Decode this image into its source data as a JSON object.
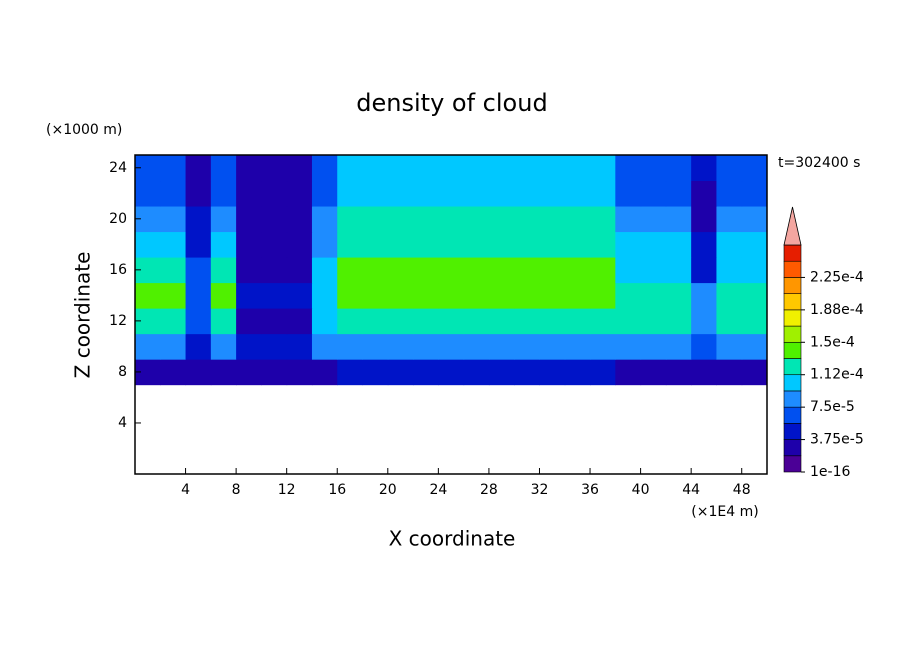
{
  "chart_data": {
    "type": "contour",
    "title": "density of cloud",
    "x_label": "X coordinate",
    "y_label": "Z coordinate",
    "x_unit": "(×1E4 m)",
    "y_unit": "(×1000 m)",
    "annotation": "t=302400 s",
    "xlim": [
      0,
      50
    ],
    "ylim": [
      0,
      25
    ],
    "xticks": [
      4,
      8,
      12,
      16,
      20,
      24,
      28,
      32,
      36,
      40,
      44,
      48
    ],
    "yticks": [
      4,
      8,
      12,
      16,
      20,
      24
    ],
    "x": [
      1,
      3,
      5,
      7,
      9,
      11,
      13,
      15,
      17,
      19,
      21,
      23,
      25,
      27,
      29,
      31,
      33,
      35,
      37,
      39,
      41,
      43,
      45,
      47,
      49
    ],
    "y": [
      8,
      10,
      12,
      14,
      16,
      18,
      20,
      22,
      24
    ],
    "z": [
      [
        3e-05,
        3e-05,
        2e-05,
        3e-05,
        2e-05,
        2e-05,
        2e-05,
        3e-05,
        4e-05,
        4e-05,
        4e-05,
        4e-05,
        4e-05,
        4e-05,
        4e-05,
        4e-05,
        4e-05,
        4e-05,
        4e-05,
        3e-05,
        3e-05,
        3e-05,
        3e-05,
        3e-05,
        3e-05
      ],
      [
        8e-05,
        8e-05,
        5e-05,
        8e-05,
        4e-05,
        4e-05,
        4e-05,
        8e-05,
        9e-05,
        9e-05,
        9e-05,
        9e-05,
        9e-05,
        9e-05,
        9e-05,
        9e-05,
        9e-05,
        9e-05,
        9e-05,
        8e-05,
        8e-05,
        8e-05,
        7e-05,
        8e-05,
        8e-05
      ],
      [
        0.00012,
        0.00012,
        6e-05,
        0.00012,
        3e-05,
        3e-05,
        3e-05,
        0.0001,
        0.000125,
        0.000125,
        0.000125,
        0.000125,
        0.000125,
        0.000125,
        0.000125,
        0.000125,
        0.000125,
        0.000125,
        0.000125,
        0.00012,
        0.00012,
        0.00012,
        9e-05,
        0.00012,
        0.00012
      ],
      [
        0.000135,
        0.000135,
        7e-05,
        0.000135,
        4e-05,
        4e-05,
        4e-05,
        0.00011,
        0.00014,
        0.00014,
        0.00014,
        0.00014,
        0.00014,
        0.00014,
        0.00014,
        0.00014,
        0.00014,
        0.00014,
        0.00014,
        0.00013,
        0.00013,
        0.00013,
        8e-05,
        0.00013,
        0.00013
      ],
      [
        0.00012,
        0.00012,
        6e-05,
        0.00012,
        3e-05,
        3e-05,
        3e-05,
        0.0001,
        0.00014,
        0.00014,
        0.00014,
        0.00014,
        0.00014,
        0.00014,
        0.00014,
        0.00014,
        0.00014,
        0.00014,
        0.00014,
        0.00011,
        0.00011,
        0.00011,
        5e-05,
        0.00011,
        0.00011
      ],
      [
        0.00011,
        0.00011,
        5e-05,
        0.00011,
        3e-05,
        3e-05,
        3e-05,
        9e-05,
        0.00013,
        0.00013,
        0.00013,
        0.00013,
        0.00013,
        0.00013,
        0.00013,
        0.00013,
        0.00013,
        0.00013,
        0.00013,
        0.0001,
        0.0001,
        0.0001,
        4e-05,
        0.0001,
        0.0001
      ],
      [
        8e-05,
        8e-05,
        4e-05,
        8e-05,
        3e-05,
        3e-05,
        3e-05,
        8e-05,
        0.00012,
        0.00012,
        0.00012,
        0.00012,
        0.00012,
        0.00012,
        0.00012,
        0.00012,
        0.00012,
        0.00012,
        0.00012,
        8e-05,
        8e-05,
        8e-05,
        3e-05,
        8e-05,
        8e-05
      ],
      [
        7e-05,
        7e-05,
        3e-05,
        7e-05,
        2e-05,
        2e-05,
        2e-05,
        6e-05,
        0.00011,
        0.00011,
        0.00011,
        0.00011,
        0.00011,
        0.00011,
        0.00011,
        0.00011,
        0.00011,
        0.00011,
        0.00011,
        6e-05,
        6e-05,
        6e-05,
        3e-05,
        6e-05,
        6e-05
      ],
      [
        6e-05,
        6e-05,
        3e-05,
        6e-05,
        3e-05,
        3e-05,
        3e-05,
        6e-05,
        0.0001,
        0.0001,
        0.0001,
        0.0001,
        0.0001,
        0.0001,
        0.0001,
        0.0001,
        0.0001,
        0.0001,
        0.0001,
        7e-05,
        7e-05,
        7e-05,
        4e-05,
        7e-05,
        7e-05
      ]
    ],
    "clim": [
      1e-16,
      0.0002625
    ],
    "colors": [
      "#4b0096",
      "#1e00aa",
      "#0014c8",
      "#0050f0",
      "#1e8cff",
      "#00c8ff",
      "#00e6b4",
      "#50f000",
      "#a0f000",
      "#f0f000",
      "#ffc800",
      "#ff9600",
      "#ff5a00",
      "#e61e00"
    ],
    "extend_color": "#f4a6a0",
    "levels": [
      {
        "value": 1e-16,
        "label": "1e-16"
      },
      {
        "value": 3.75e-05,
        "label": "3.75e-5"
      },
      {
        "value": 7.5e-05,
        "label": "7.5e-5"
      },
      {
        "value": 0.0001125,
        "label": "1.12e-4"
      },
      {
        "value": 0.00015,
        "label": "1.5e-4"
      },
      {
        "value": 0.0001875,
        "label": "1.88e-4"
      },
      {
        "value": 0.000225,
        "label": "2.25e-4"
      }
    ]
  }
}
